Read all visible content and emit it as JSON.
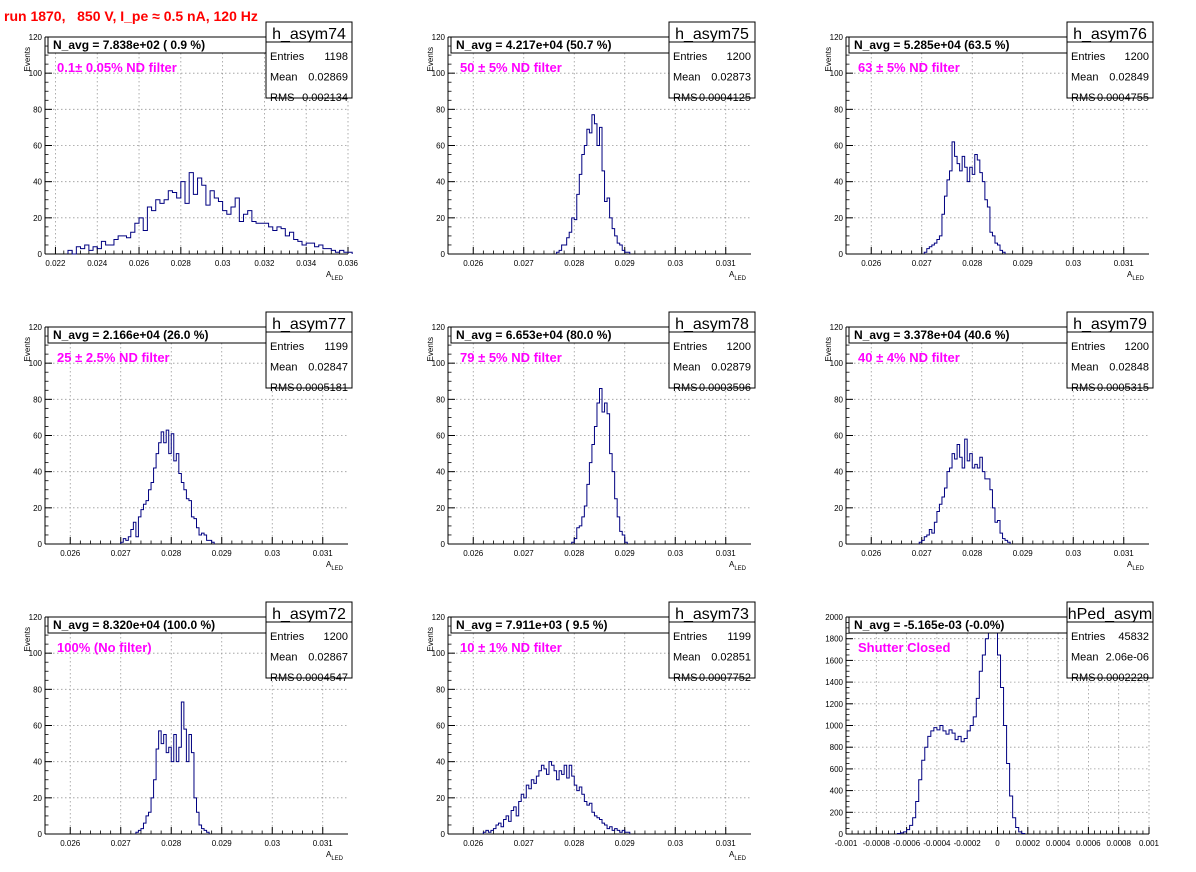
{
  "title": "run 1870,   850 V, I_pe ≈ 0.5 nA, 120 Hz",
  "colors": {
    "title": "#ff0000",
    "annotation": "#ff00ff",
    "histogram": "#000080",
    "grid": "#999999"
  },
  "chart_data": [
    {
      "type": "histogram",
      "name": "h_asym74",
      "title": "N_avg = 7.838e+02 ( 0.9 %)",
      "annotation": "0.1± 0.05% ND filter",
      "stats": [
        [
          "Entries",
          "1198"
        ],
        [
          "Mean",
          "0.02869"
        ],
        [
          "RMS",
          "0.002134"
        ]
      ],
      "ylabel": "Events",
      "xlabel": "A_LED",
      "xlim": [
        0.0215,
        0.036
      ],
      "ylim": [
        0,
        120
      ],
      "xticks": [
        0.022,
        0.024,
        0.026,
        0.028,
        0.03,
        0.032,
        0.034,
        0.036
      ],
      "xticklabels": [
        "0.022",
        "0.024",
        "0.026",
        "0.028",
        "0.03",
        "0.032",
        "0.034",
        "0.036"
      ],
      "yticks": [
        0,
        20,
        40,
        60,
        80,
        100,
        120
      ],
      "bin_width": 0.0002,
      "x_start": 0.0226,
      "counts": [
        2,
        0,
        4,
        3,
        5,
        2,
        4,
        3,
        7,
        5,
        5,
        8,
        10,
        10,
        9,
        12,
        17,
        20,
        13,
        26,
        24,
        30,
        28,
        30,
        35,
        34,
        31,
        40,
        28,
        45,
        33,
        42,
        38,
        27,
        35,
        31,
        29,
        24,
        22,
        26,
        31,
        18,
        22,
        24,
        18,
        17,
        17,
        17,
        15,
        13,
        15,
        14,
        10,
        12,
        8,
        7,
        5,
        6,
        6,
        4,
        5,
        3,
        3,
        2,
        1,
        2,
        1,
        1
      ]
    },
    {
      "type": "histogram",
      "name": "h_asym75",
      "title": "N_avg = 4.217e+04 (50.7 %)",
      "annotation": "50 ± 5% ND filter",
      "stats": [
        [
          "Entries",
          "1200"
        ],
        [
          "Mean",
          "0.02873"
        ],
        [
          "RMS",
          "0.0004125"
        ]
      ],
      "ylabel": "Events",
      "xlabel": "A_LED",
      "xlim": [
        0.0255,
        0.0315
      ],
      "ylim": [
        0,
        120
      ],
      "xticks": [
        0.026,
        0.027,
        0.028,
        0.029,
        0.03,
        0.031
      ],
      "xticklabels": [
        "0.026",
        "0.027",
        "0.028",
        "0.029",
        "0.03",
        "0.031"
      ],
      "yticks": [
        0,
        20,
        40,
        60,
        80,
        100,
        120
      ],
      "bin_width": 5e-05,
      "x_start": 0.02765,
      "counts": [
        1,
        2,
        5,
        5,
        9,
        12,
        20,
        19,
        33,
        44,
        55,
        60,
        69,
        67,
        77,
        72,
        60,
        70,
        46,
        29,
        31,
        20,
        14,
        10,
        6,
        5,
        2,
        1,
        1
      ]
    },
    {
      "type": "histogram",
      "name": "h_asym76",
      "title": "N_avg = 5.285e+04 (63.5 %)",
      "annotation": "63 ± 5% ND filter",
      "stats": [
        [
          "Entries",
          "1200"
        ],
        [
          "Mean",
          "0.02849"
        ],
        [
          "RMS",
          "0.0004755"
        ]
      ],
      "ylabel": "Events",
      "xlabel": "A_LED",
      "xlim": [
        0.0255,
        0.0315
      ],
      "ylim": [
        0,
        120
      ],
      "xticks": [
        0.026,
        0.027,
        0.028,
        0.029,
        0.03,
        0.031
      ],
      "xticklabels": [
        "0.026",
        "0.027",
        "0.028",
        "0.029",
        "0.03",
        "0.031"
      ],
      "yticks": [
        0,
        20,
        40,
        60,
        80,
        100,
        120
      ],
      "bin_width": 5e-05,
      "x_start": 0.02705,
      "counts": [
        1,
        3,
        4,
        5,
        6,
        8,
        10,
        22,
        32,
        41,
        46,
        62,
        54,
        50,
        46,
        54,
        48,
        40,
        48,
        44,
        55,
        52,
        45,
        40,
        30,
        26,
        12,
        10,
        6,
        5,
        2,
        1
      ]
    },
    {
      "type": "histogram",
      "name": "h_asym77",
      "title": "N_avg = 2.166e+04 (26.0 %)",
      "annotation": "25 ± 2.5% ND filter",
      "stats": [
        [
          "Entries",
          "1199"
        ],
        [
          "Mean",
          "0.02847"
        ],
        [
          "RMS",
          "0.0005181"
        ]
      ],
      "ylabel": "Events",
      "xlabel": "A_LED",
      "xlim": [
        0.0255,
        0.0315
      ],
      "ylim": [
        0,
        120
      ],
      "xticks": [
        0.026,
        0.027,
        0.028,
        0.029,
        0.03,
        0.031
      ],
      "xticklabels": [
        "0.026",
        "0.027",
        "0.028",
        "0.029",
        "0.03",
        "0.031"
      ],
      "yticks": [
        0,
        20,
        40,
        60,
        80,
        100,
        120
      ],
      "bin_width": 5e-05,
      "x_start": 0.027,
      "counts": [
        1,
        3,
        2,
        4,
        8,
        12,
        4,
        15,
        19,
        22,
        24,
        30,
        34,
        42,
        50,
        56,
        62,
        56,
        63,
        50,
        61,
        46,
        50,
        39,
        34,
        30,
        25,
        24,
        15,
        14,
        9,
        5,
        6,
        5,
        2,
        2,
        1
      ]
    },
    {
      "type": "histogram",
      "name": "h_asym78",
      "title": "N_avg = 6.653e+04 (80.0 %)",
      "annotation": "79 ± 5% ND filter",
      "stats": [
        [
          "Entries",
          "1200"
        ],
        [
          "Mean",
          "0.02879"
        ],
        [
          "RMS",
          "0.0003596"
        ]
      ],
      "ylabel": "Events",
      "xlabel": "A_LED",
      "xlim": [
        0.0255,
        0.0315
      ],
      "ylim": [
        0,
        120
      ],
      "xticks": [
        0.026,
        0.027,
        0.028,
        0.029,
        0.03,
        0.031
      ],
      "xticklabels": [
        "0.026",
        "0.027",
        "0.028",
        "0.029",
        "0.03",
        "0.031"
      ],
      "yticks": [
        0,
        20,
        40,
        60,
        80,
        100,
        120
      ],
      "bin_width": 5e-05,
      "x_start": 0.02795,
      "counts": [
        1,
        3,
        9,
        10,
        15,
        21,
        33,
        45,
        55,
        65,
        78,
        86,
        73,
        78,
        72,
        50,
        40,
        25,
        15,
        7,
        5,
        1
      ]
    },
    {
      "type": "histogram",
      "name": "h_asym79",
      "title": "N_avg = 3.378e+04 (40.6 %)",
      "annotation": "40 ± 4% ND filter",
      "stats": [
        [
          "Entries",
          "1200"
        ],
        [
          "Mean",
          "0.02848"
        ],
        [
          "RMS",
          "0.0005315"
        ]
      ],
      "ylabel": "Events",
      "xlabel": "A_LED",
      "xlim": [
        0.0255,
        0.0315
      ],
      "ylim": [
        0,
        120
      ],
      "xticks": [
        0.026,
        0.027,
        0.028,
        0.029,
        0.03,
        0.031
      ],
      "xticklabels": [
        "0.026",
        "0.027",
        "0.028",
        "0.029",
        "0.03",
        "0.031"
      ],
      "yticks": [
        0,
        20,
        40,
        60,
        80,
        100,
        120
      ],
      "bin_width": 5e-05,
      "x_start": 0.02695,
      "counts": [
        1,
        2,
        4,
        5,
        8,
        6,
        12,
        18,
        22,
        26,
        31,
        40,
        42,
        50,
        47,
        55,
        48,
        42,
        58,
        46,
        50,
        42,
        44,
        42,
        48,
        40,
        36,
        36,
        30,
        20,
        12,
        13,
        6,
        3,
        2,
        1
      ]
    },
    {
      "type": "histogram",
      "name": "h_asym72",
      "title": "N_avg = 8.320e+04 (100.0 %)",
      "annotation": "100% (No filter)",
      "stats": [
        [
          "Entries",
          "1200"
        ],
        [
          "Mean",
          "0.02867"
        ],
        [
          "RMS",
          "0.0004547"
        ]
      ],
      "ylabel": "Events",
      "xlabel": "A_LED",
      "xlim": [
        0.0255,
        0.0315
      ],
      "ylim": [
        0,
        120
      ],
      "xticks": [
        0.026,
        0.027,
        0.028,
        0.029,
        0.03,
        0.031
      ],
      "xticklabels": [
        "0.026",
        "0.027",
        "0.028",
        "0.029",
        "0.03",
        "0.031"
      ],
      "yticks": [
        0,
        20,
        40,
        60,
        80,
        100,
        120
      ],
      "bin_width": 5e-05,
      "x_start": 0.0273,
      "counts": [
        1,
        2,
        3,
        6,
        10,
        12,
        20,
        30,
        47,
        57,
        50,
        55,
        45,
        48,
        40,
        55,
        40,
        48,
        73,
        58,
        40,
        55,
        45,
        20,
        12,
        5,
        3,
        2,
        1
      ]
    },
    {
      "type": "histogram",
      "name": "h_asym73",
      "title": "N_avg = 7.911e+03 ( 9.5 %)",
      "annotation": "10 ± 1% ND filter",
      "stats": [
        [
          "Entries",
          "1199"
        ],
        [
          "Mean",
          "0.02851"
        ],
        [
          "RMS",
          "0.0007752"
        ]
      ],
      "ylabel": "Events",
      "xlabel": "A_LED",
      "xlim": [
        0.0255,
        0.0315
      ],
      "ylim": [
        0,
        120
      ],
      "xticks": [
        0.026,
        0.027,
        0.028,
        0.029,
        0.03,
        0.031
      ],
      "xticklabels": [
        "0.026",
        "0.027",
        "0.028",
        "0.029",
        "0.03",
        "0.031"
      ],
      "yticks": [
        0,
        20,
        40,
        60,
        80,
        100,
        120
      ],
      "bin_width": 5e-05,
      "x_start": 0.0262,
      "counts": [
        1,
        2,
        1,
        2,
        3,
        5,
        6,
        4,
        8,
        10,
        7,
        13,
        15,
        10,
        18,
        22,
        20,
        27,
        25,
        30,
        28,
        32,
        35,
        38,
        36,
        33,
        40,
        38,
        35,
        30,
        35,
        33,
        38,
        31,
        38,
        32,
        27,
        24,
        26,
        22,
        18,
        16,
        17,
        12,
        10,
        9,
        8,
        6,
        5,
        3,
        4,
        2,
        3,
        2,
        1,
        2,
        1,
        1
      ]
    },
    {
      "type": "histogram",
      "name": "hPed_asym",
      "title": "N_avg = -5.165e-03 (-0.0%)",
      "annotation": "Shutter Closed",
      "stats": [
        [
          "Entries",
          "45832"
        ],
        [
          "Mean",
          "2.06e-06"
        ],
        [
          "RMS",
          "0.0002229"
        ]
      ],
      "ylabel": "",
      "xlabel": "",
      "xlim": [
        -0.001,
        0.001
      ],
      "ylim": [
        0,
        2000
      ],
      "xticks": [
        -0.001,
        -0.0008,
        -0.0006,
        -0.0004,
        -0.0002,
        0,
        0.0002,
        0.0004,
        0.0006,
        0.0008,
        0.001
      ],
      "xticklabels": [
        "-0.001",
        "-0.0008",
        "-0.0006",
        "-0.0004",
        "-0.0002",
        "0",
        "0.0002",
        "0.0004",
        "0.0006",
        "0.0008",
        "0.001"
      ],
      "yticks": [
        0,
        200,
        400,
        600,
        800,
        1000,
        1200,
        1400,
        1600,
        1800,
        2000
      ],
      "bin_width": 2e-05,
      "x_start": -0.00066,
      "counts": [
        5,
        10,
        20,
        40,
        80,
        150,
        300,
        500,
        680,
        800,
        900,
        950,
        980,
        960,
        1000,
        950,
        920,
        960,
        930,
        870,
        900,
        850,
        880,
        950,
        1000,
        1080,
        1250,
        1500,
        1650,
        1800,
        1950,
        2000,
        1900,
        1650,
        1350,
        1000,
        650,
        350,
        150,
        60,
        20,
        5
      ]
    }
  ]
}
